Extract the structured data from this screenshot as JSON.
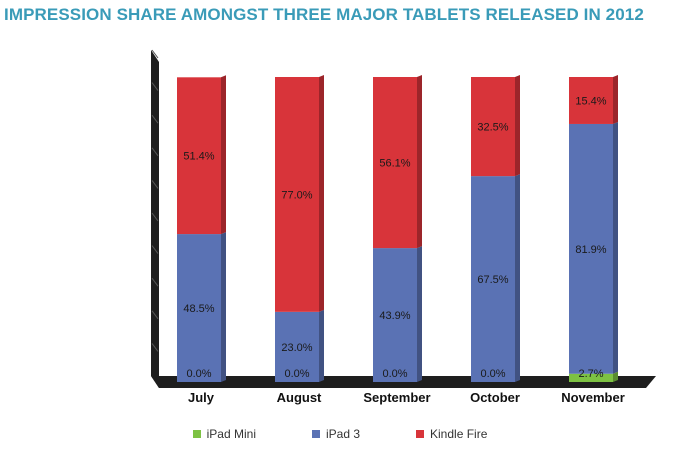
{
  "chart_data": {
    "type": "bar",
    "stacked": true,
    "title": "IMPRESSION SHARE AMONGST THREE MAJOR TABLETS RELEASED IN 2012",
    "categories": [
      "July",
      "August",
      "September",
      "October",
      "November"
    ],
    "series": [
      {
        "name": "iPad Mini",
        "color": "#7dc243",
        "values": [
          0.0,
          0.0,
          0.0,
          0.0,
          2.7
        ],
        "labels": [
          "0.0%",
          "0.0%",
          "0.0%",
          "0.0%",
          "2.7%"
        ]
      },
      {
        "name": "iPad 3",
        "color": "#5a72b4",
        "values": [
          48.5,
          23.0,
          43.9,
          67.5,
          81.9
        ],
        "labels": [
          "48.5%",
          "23.0%",
          "43.9%",
          "67.5%",
          "81.9%"
        ]
      },
      {
        "name": "Kindle Fire",
        "color": "#d8343a",
        "values": [
          51.4,
          77.0,
          56.1,
          32.5,
          15.4
        ],
        "labels": [
          "51.4%",
          "77.0%",
          "56.1%",
          "32.5%",
          "15.4%"
        ]
      }
    ],
    "ylim": [
      0,
      100
    ],
    "grid": false,
    "legend": "bottom"
  }
}
